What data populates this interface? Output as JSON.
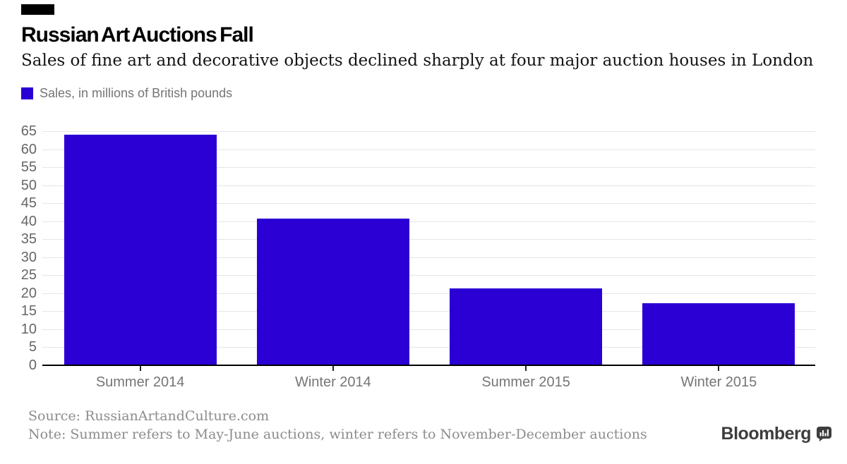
{
  "header": {
    "title": "Russian Art Auctions Fall",
    "subtitle": "Sales of fine art and decorative objects declined sharply at four major auction houses in London",
    "legend_label": "Sales, in millions of British pounds"
  },
  "chart_data": {
    "type": "bar",
    "title": "Russian Art Auctions Fall",
    "subtitle": "Sales of fine art and decorative objects declined sharply at four major auction houses in London",
    "categories": [
      "Summer 2014",
      "Winter 2014",
      "Summer 2015",
      "Winter 2015"
    ],
    "values": [
      64.1,
      40.7,
      21.3,
      17.2
    ],
    "series_label": "Sales, in millions of British pounds",
    "xlabel": "",
    "ylabel": "Sales, in millions of British pounds",
    "ylim": [
      0,
      65
    ],
    "yticks": [
      0,
      5,
      10,
      15,
      20,
      25,
      30,
      35,
      40,
      45,
      50,
      55,
      60,
      65
    ],
    "grid": true,
    "legend_position": "top-left",
    "bar_color": "#2a00d4",
    "gridline_color": "#e5e5e5",
    "axis_color": "#000000",
    "tick_label_color": "#666666"
  },
  "footer": {
    "source": "Source: RussianArtandCulture.com",
    "note": "Note: Summer refers to May-June auctions, winter refers to November-December auctions",
    "brand": "Bloomberg",
    "brand_icon": "bloomberg-terminal-icon"
  }
}
